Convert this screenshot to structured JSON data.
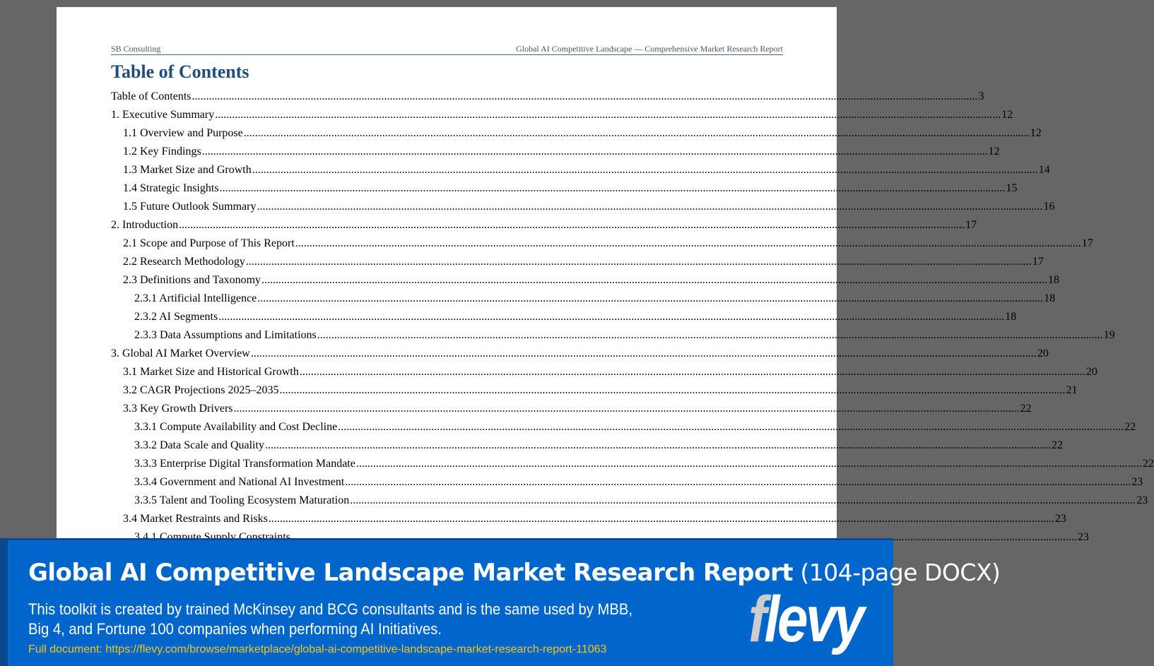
{
  "header": {
    "left": "SB Consulting",
    "right": "Global AI Competitive Landscape — Comprehensive Market Research Report"
  },
  "title": "Table of Contents",
  "toc": [
    {
      "label": "Table of Contents",
      "page": "3",
      "level": 1
    },
    {
      "label": "1. Executive Summary",
      "page": "12",
      "level": 1
    },
    {
      "label": "1.1 Overview and Purpose",
      "page": "12",
      "level": 2
    },
    {
      "label": "1.2 Key Findings",
      "page": "12",
      "level": 2
    },
    {
      "label": "1.3 Market Size and Growth",
      "page": "14",
      "level": 2
    },
    {
      "label": "1.4 Strategic Insights",
      "page": "15",
      "level": 2
    },
    {
      "label": "1.5 Future Outlook Summary",
      "page": "16",
      "level": 2
    },
    {
      "label": "2. Introduction",
      "page": "17",
      "level": 1
    },
    {
      "label": "2.1 Scope and Purpose of This Report",
      "page": "17",
      "level": 2
    },
    {
      "label": "2.2 Research Methodology",
      "page": "17",
      "level": 2
    },
    {
      "label": "2.3 Definitions and Taxonomy",
      "page": "18",
      "level": 2
    },
    {
      "label": "2.3.1 Artificial Intelligence",
      "page": "18",
      "level": 3
    },
    {
      "label": "2.3.2 AI Segments",
      "page": "18",
      "level": 3
    },
    {
      "label": "2.3.3 Data Assumptions and Limitations",
      "page": "19",
      "level": 3
    },
    {
      "label": "3. Global AI Market Overview",
      "page": "20",
      "level": 1
    },
    {
      "label": "3.1 Market Size and Historical Growth",
      "page": "20",
      "level": 2
    },
    {
      "label": "3.2 CAGR Projections 2025–2035",
      "page": "21",
      "level": 2
    },
    {
      "label": "3.3 Key Growth Drivers",
      "page": "22",
      "level": 2
    },
    {
      "label": "3.3.1 Compute Availability and Cost Decline",
      "page": "22",
      "level": 3
    },
    {
      "label": "3.3.2 Data Scale and Quality",
      "page": "22",
      "level": 3
    },
    {
      "label": "3.3.3 Enterprise Digital Transformation Mandate",
      "page": "22",
      "level": 3
    },
    {
      "label": "3.3.4 Government and National AI Investment",
      "page": "23",
      "level": 3
    },
    {
      "label": "3.3.5 Talent and Tooling Ecosystem Maturation",
      "page": "23",
      "level": 3
    },
    {
      "label": "3.4 Market Restraints and Risks",
      "page": "23",
      "level": 2
    },
    {
      "label": "3.4.1 Compute Supply Constraints",
      "page": "23",
      "level": 3
    }
  ],
  "banner": {
    "title_bold": "Global AI Competitive Landscape Market Research Report",
    "title_light": "(104-page DOCX)",
    "desc_line1": "This toolkit is created by trained McKinsey and BCG consultants and is the same used by MBB,",
    "desc_line2": "Big 4, and Fortune 100 companies when performing AI Initiatives.",
    "link": "Full document: https://flevy.com/browse/marketplace/global-ai-competitive-landscape-market-research-report-11063",
    "logo": "flevy"
  }
}
